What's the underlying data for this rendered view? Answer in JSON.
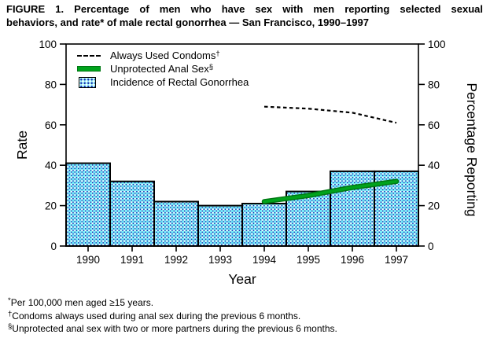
{
  "figure": {
    "title_line1": "FIGURE 1. Percentage of men who have sex with men reporting selected sexual",
    "title_line2": "behaviors, and rate* of male rectal gonorrhea — San Francisco, 1990–1997"
  },
  "chart_data": {
    "type": "combo-bar-line",
    "categories": [
      "1990",
      "1991",
      "1992",
      "1993",
      "1994",
      "1995",
      "1996",
      "1997"
    ],
    "bar_series": {
      "name": "Incidence of Rectal Gonorrhea",
      "values": [
        41,
        32,
        22,
        20,
        21,
        27,
        37,
        37
      ],
      "fill_base": "#8feef7",
      "pattern_dot_color": "#1c1cae",
      "outline_color": "#000000"
    },
    "line_series": [
      {
        "name": "Always Used Condoms",
        "marker": "†",
        "style": "dashed",
        "color": "#000000",
        "x": [
          "1994",
          "1995",
          "1996",
          "1997"
        ],
        "values": [
          69,
          68,
          66,
          61
        ]
      },
      {
        "name": "Unprotected Anal Sex",
        "marker": "§",
        "style": "solid",
        "color": "#00A31C",
        "x": [
          "1994",
          "1995",
          "1996",
          "1997"
        ],
        "values": [
          22,
          25,
          29,
          32
        ]
      }
    ],
    "xlabel": "Year",
    "ylabel_left": "Rate",
    "ylabel_right": "Percentage Reporting",
    "ylim": [
      0,
      100
    ],
    "yticks": [
      0,
      20,
      40,
      60,
      80,
      100
    ],
    "grid": false,
    "legend_position": "top-left-inside"
  },
  "footnotes": [
    {
      "marker": "*",
      "text": "Per 100,000 men aged ≥15 years."
    },
    {
      "marker": "†",
      "text": "Condoms always used during anal sex during the previous 6 months."
    },
    {
      "marker": "§",
      "text": "Unprotected anal sex with two or more partners during the previous 6 months."
    }
  ]
}
